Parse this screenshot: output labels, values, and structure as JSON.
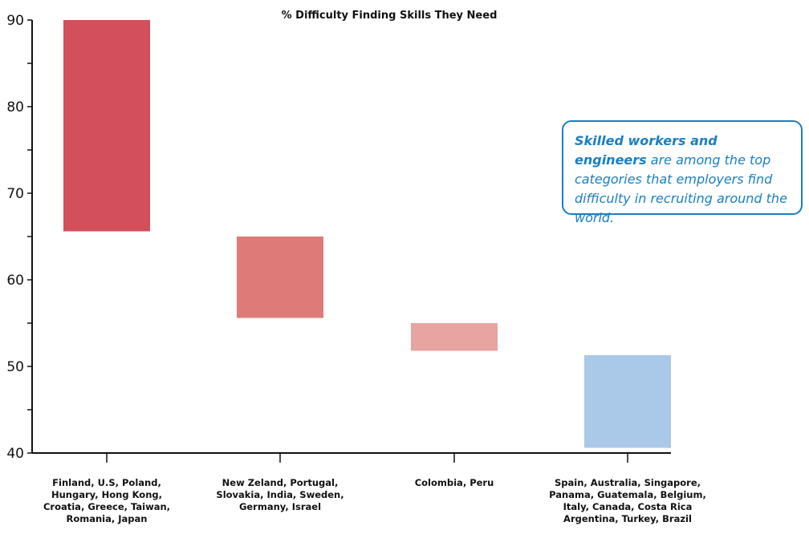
{
  "chart_data": {
    "type": "bar",
    "title": "% Difficulty Finding Skills They Need",
    "ylim": [
      40,
      90
    ],
    "yticks": [
      40,
      50,
      60,
      70,
      80,
      90
    ],
    "xlabel": "",
    "ylabel": "",
    "categories": [
      [
        "Finland, U.S, Poland,",
        "Hungary, Hong Kong,",
        "Croatia, Greece, Taiwan,",
        "Romania, Japan"
      ],
      [
        "New Zeland, Portugal,",
        "Slovakia, India, Sweden,",
        "Germany, Israel"
      ],
      [
        "Colombia, Peru"
      ],
      [
        "Spain, Australia, Singapore,",
        "Panama, Guatemala, Belgium,",
        "Italy, Canada, Costa Rica",
        "Argentina, Turkey, Brazil"
      ]
    ],
    "ranges": [
      [
        65.6,
        90
      ],
      [
        55.6,
        65
      ],
      [
        51.8,
        55
      ],
      [
        40.6,
        51.3
      ]
    ],
    "colors": [
      "#d34f5c",
      "#de7a78",
      "#e8a4a0",
      "#aac8e8"
    ]
  },
  "callout": {
    "highlight": "Skilled workers and engineers",
    "text": "are among the top categories that employers find difficulty in recruiting around the world."
  }
}
